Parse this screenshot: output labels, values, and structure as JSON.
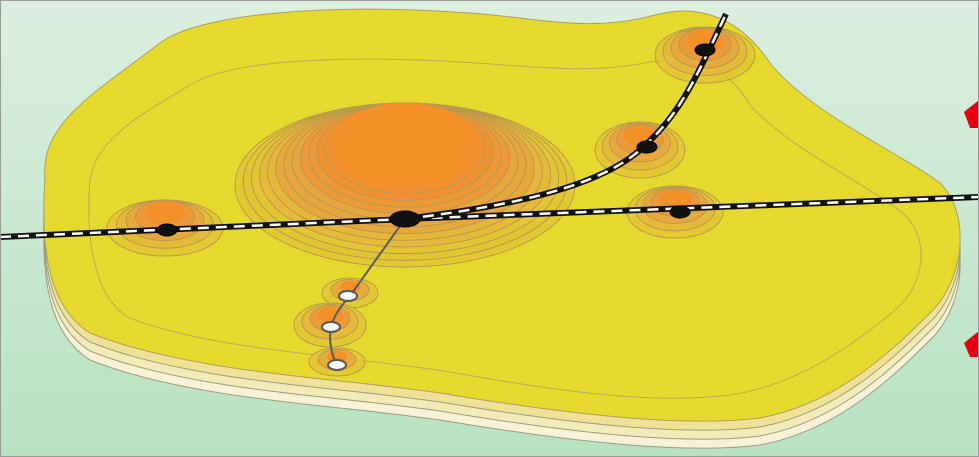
{
  "figure": {
    "colors": {
      "background_top": "#dcefe0",
      "background_bottom": "#b7e2c0",
      "outer_layers": [
        "#f8f3d6",
        "#f4ecb8",
        "#efe296"
      ],
      "plain_yellow": "#e6d92e",
      "hill_rings": [
        "#e2c634",
        "#e5b63c",
        "#e8a63e",
        "#ec9738",
        "#f08f30"
      ],
      "hill_peak": "#f39028",
      "main_rail_line": "#111111",
      "rail_dash": "#ffffff",
      "branch_line": "#555555",
      "major_node": "#111111",
      "minor_node": "#ffffff",
      "arrow": "#e60012"
    },
    "icons": [
      "central-city-node",
      "town-node",
      "village-node",
      "arrow-icon"
    ]
  }
}
